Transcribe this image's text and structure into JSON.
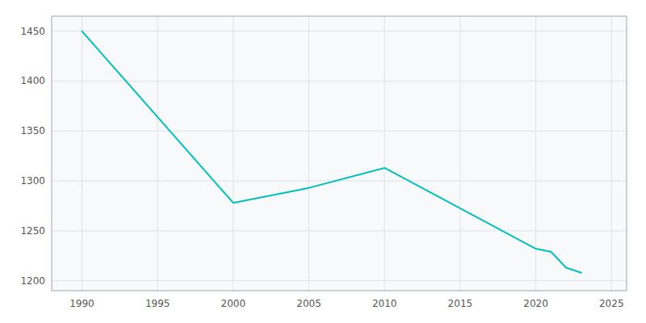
{
  "chart_data": {
    "type": "line",
    "x": [
      1990,
      2000,
      2005,
      2010,
      2020,
      2021,
      2022,
      2023
    ],
    "values": [
      1450,
      1278,
      1293,
      1313,
      1232,
      1229,
      1213,
      1208
    ],
    "color": "#00BFBF",
    "xlim": [
      1988,
      2026
    ],
    "ylim": [
      1190,
      1465
    ],
    "xticks": [
      1990,
      1995,
      2000,
      2005,
      2010,
      2015,
      2020,
      2025
    ],
    "yticks": [
      1200,
      1250,
      1300,
      1350,
      1400,
      1450
    ],
    "grid": true
  }
}
